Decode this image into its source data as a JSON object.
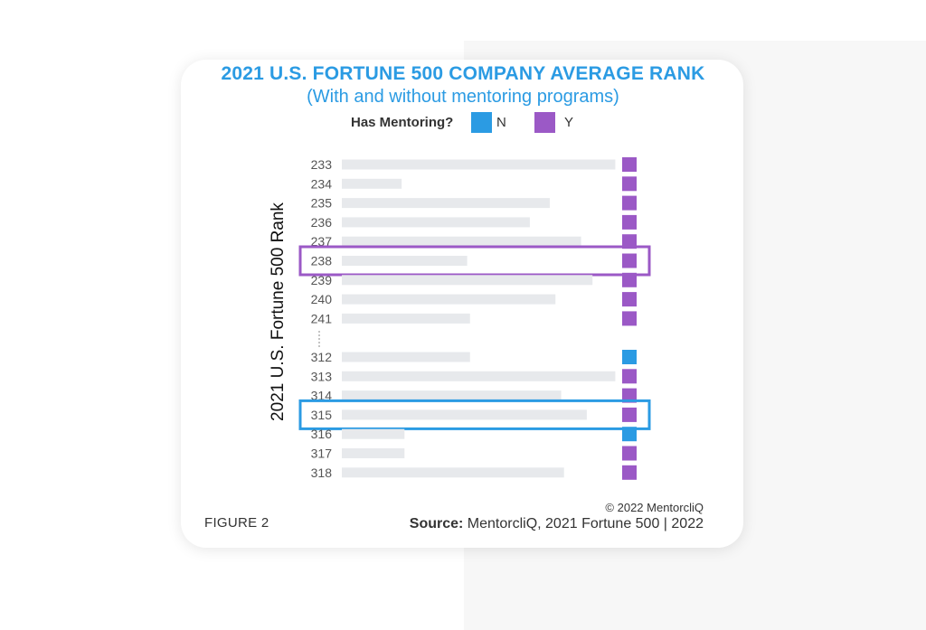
{
  "chart_data": {
    "type": "bar",
    "title": "2021 U.S. FORTUNE 500 COMPANY AVERAGE RANK",
    "subtitle": "(With and without mentoring programs)",
    "ylabel": "2021 U.S. Fortune 500 Rank",
    "legend": {
      "title": "Has Mentoring?",
      "entries": [
        {
          "label": "N",
          "color": "#2b9be3"
        },
        {
          "label": "Y",
          "color": "#9b59c6"
        }
      ]
    },
    "groups": [
      {
        "rows": [
          {
            "rank": "233",
            "value": 0.96,
            "mentoring": "Y"
          },
          {
            "rank": "234",
            "value": 0.21,
            "mentoring": "Y"
          },
          {
            "rank": "235",
            "value": 0.73,
            "mentoring": "Y"
          },
          {
            "rank": "236",
            "value": 0.66,
            "mentoring": "Y"
          },
          {
            "rank": "237",
            "value": 0.84,
            "mentoring": "Y"
          },
          {
            "rank": "238",
            "value": 0.44,
            "mentoring": "Y",
            "highlight": "#9b59c6"
          },
          {
            "rank": "239",
            "value": 0.88,
            "mentoring": "Y"
          },
          {
            "rank": "240",
            "value": 0.75,
            "mentoring": "Y"
          },
          {
            "rank": "241",
            "value": 0.45,
            "mentoring": "Y"
          }
        ]
      },
      {
        "rows": [
          {
            "rank": "312",
            "value": 0.45,
            "mentoring": "N"
          },
          {
            "rank": "313",
            "value": 0.96,
            "mentoring": "Y"
          },
          {
            "rank": "314",
            "value": 0.77,
            "mentoring": "Y"
          },
          {
            "rank": "315",
            "value": 0.86,
            "mentoring": "Y",
            "highlight": "#2b9be3"
          },
          {
            "rank": "316",
            "value": 0.22,
            "mentoring": "N"
          },
          {
            "rank": "317",
            "value": 0.22,
            "mentoring": "Y"
          },
          {
            "rank": "318",
            "value": 0.78,
            "mentoring": "Y"
          }
        ]
      }
    ],
    "bar_color": "#e7e9ec"
  },
  "footer": {
    "figure_label": "FIGURE 2",
    "copyright": "© 2022 MentorcliQ",
    "source_label": "Source:",
    "source_text": " MentorcliQ, 2021 Fortune 500 | 2022"
  }
}
